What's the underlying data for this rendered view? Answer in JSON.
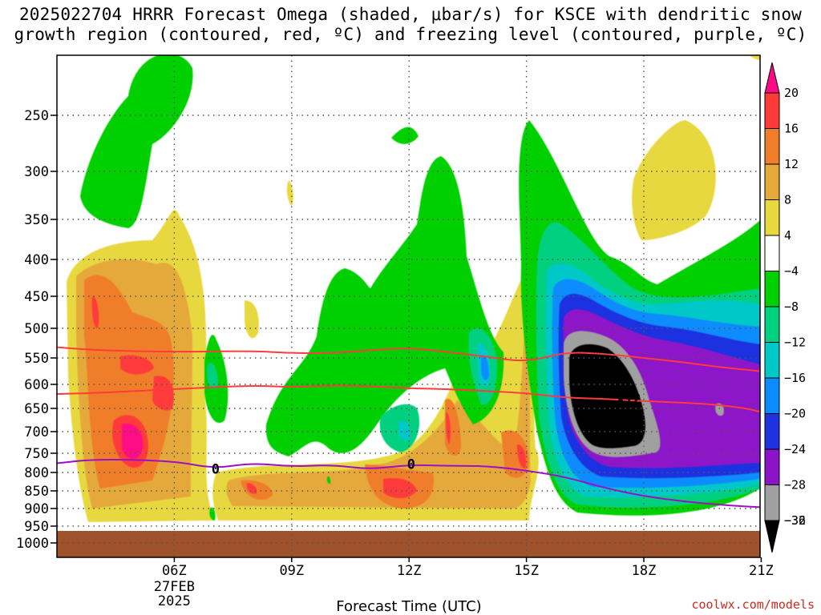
{
  "title": {
    "line1": "2025022704 HRRR Forecast Omega (shaded, μbar/s) for KSCE with dendritic snow",
    "line2": "growth region (contoured, red, ºC) and freezing level (contoured, purple, ºC)"
  },
  "credit": "coolwx.com/models",
  "colors": {
    "ground": "#a0522d",
    "dgz_contour": "#ff3b3b",
    "freezing_contour": "#9c10c6",
    "grid": "#555555"
  },
  "chart_data": {
    "type": "heatmap",
    "title": "2025022704 HRRR Forecast Omega (shaded, μbar/s) for KSCE with dendritic snow growth region (contoured, red, ºC) and freezing level (contoured, purple, ºC)",
    "xlabel": "Forecast Time (UTC)",
    "ylabel": "",
    "x_ticks": [
      "06Z",
      "09Z",
      "12Z",
      "15Z",
      "18Z",
      "21Z"
    ],
    "x_date_label": [
      "27FEB",
      "2025"
    ],
    "x_range_hours": [
      3,
      21
    ],
    "y_ticks": [
      250,
      300,
      350,
      400,
      450,
      500,
      550,
      600,
      650,
      700,
      750,
      800,
      850,
      900,
      950,
      1000
    ],
    "y_range_mb": [
      200,
      1030
    ],
    "y_scale": "pressure (log)",
    "grid": true,
    "colorbar": {
      "levels": [
        20,
        16,
        12,
        8,
        4,
        -4,
        -8,
        -12,
        -16,
        -20,
        -24,
        -28,
        -32,
        -36
      ],
      "labels": [
        "20",
        "16",
        "12",
        "8",
        "4",
        "−4",
        "−8",
        "−12",
        "−16",
        "−20",
        "−24",
        "−28",
        "−32",
        "−36"
      ],
      "colors": [
        "#ff0a85",
        "#ff3a3a",
        "#f07d2a",
        "#e5a93a",
        "#e8d83f",
        "#ffffff",
        "#00cf00",
        "#00d07f",
        "#00c8c8",
        "#0a8cff",
        "#1e32e0",
        "#8c14c8",
        "#a0a0a0",
        "#000000"
      ]
    },
    "omega_regions": [
      {
        "name": "rising-max-17z",
        "value": -40,
        "time_hours": [
          16.9,
          18.8
        ],
        "pressure_mb": [
          540,
          760
        ]
      },
      {
        "name": "sinking-max-06z",
        "value": 16,
        "time_hours": [
          5.5,
          6.5
        ],
        "pressure_mb": [
          650,
          780
        ]
      },
      {
        "name": "sinking-max-13z",
        "value": 14,
        "time_hours": [
          12.4,
          13.8
        ],
        "pressure_mb": [
          820,
          900
        ]
      }
    ],
    "series": [
      {
        "name": "-12",
        "type": "contour",
        "color": "#ff3b3b",
        "x": [
          3,
          4,
          6,
          8,
          9,
          10,
          11,
          12,
          13,
          14,
          15,
          16,
          17,
          18,
          19,
          20,
          21,
          22
        ],
        "y": [
          620,
          618,
          610,
          602,
          606,
          602,
          604,
          608,
          610,
          614,
          618,
          628,
          630,
          635,
          638,
          643,
          655,
          690
        ]
      },
      {
        "name": "",
        "type": "contour",
        "color": "#ff3b3b",
        "x": [
          3,
          4,
          6,
          8,
          9,
          10,
          11,
          12,
          13,
          14,
          15,
          16,
          17,
          18,
          19,
          20,
          21,
          22
        ],
        "y": [
          532,
          537,
          540,
          538,
          542,
          542,
          537,
          533,
          540,
          548,
          558,
          540,
          543,
          550,
          558,
          568,
          575,
          585
        ]
      },
      {
        "name": "0",
        "type": "contour",
        "color": "#9c10c6",
        "x": [
          3,
          4,
          6,
          7,
          8,
          9,
          10,
          11,
          12,
          13,
          14,
          15,
          16,
          17,
          18,
          19,
          20,
          21,
          22
        ],
        "y": [
          776,
          765,
          770,
          790,
          775,
          785,
          780,
          792,
          780,
          783,
          783,
          795,
          812,
          842,
          865,
          880,
          890,
          897,
          900
        ]
      }
    ]
  }
}
